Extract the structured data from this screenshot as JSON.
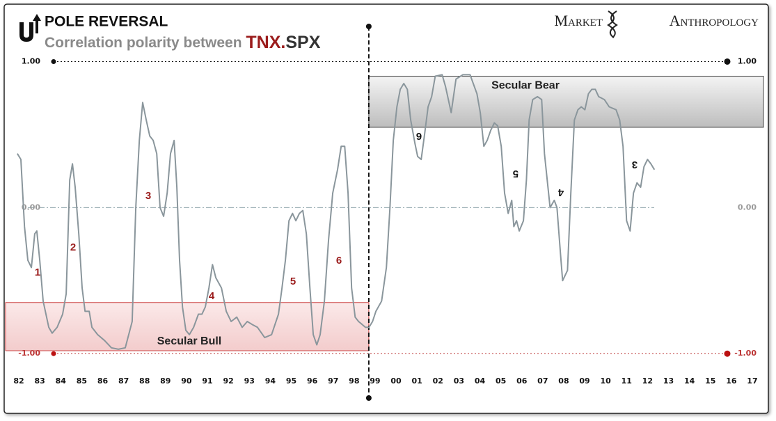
{
  "chart_data": {
    "type": "line",
    "title": "POLE REVERSAL",
    "subtitle": [
      "Correlation polarity between ",
      "TNX.",
      "SPX"
    ],
    "brand": [
      "Market",
      "Anthropology"
    ],
    "xlim": [
      1981.7,
      2017.3
    ],
    "ylim": [
      -1.08,
      1.05
    ],
    "xticks": [
      {
        "value": 1982,
        "label": "82"
      },
      {
        "value": 1983,
        "label": "83"
      },
      {
        "value": 1984,
        "label": "84"
      },
      {
        "value": 1985,
        "label": "85"
      },
      {
        "value": 1986,
        "label": "86"
      },
      {
        "value": 1987,
        "label": "87"
      },
      {
        "value": 1988,
        "label": "88"
      },
      {
        "value": 1989,
        "label": "89"
      },
      {
        "value": 1990,
        "label": "90"
      },
      {
        "value": 1991,
        "label": "91"
      },
      {
        "value": 1992,
        "label": "92"
      },
      {
        "value": 1993,
        "label": "93"
      },
      {
        "value": 1994,
        "label": "94"
      },
      {
        "value": 1995,
        "label": "95"
      },
      {
        "value": 1996,
        "label": "96"
      },
      {
        "value": 1997,
        "label": "97"
      },
      {
        "value": 1998,
        "label": "98"
      },
      {
        "value": 1999,
        "label": "99"
      },
      {
        "value": 2000,
        "label": "00"
      },
      {
        "value": 2001,
        "label": "01"
      },
      {
        "value": 2002,
        "label": "02"
      },
      {
        "value": 2003,
        "label": "03"
      },
      {
        "value": 2004,
        "label": "04"
      },
      {
        "value": 2005,
        "label": "05"
      },
      {
        "value": 2006,
        "label": "06"
      },
      {
        "value": 2007,
        "label": "07"
      },
      {
        "value": 2008,
        "label": "08"
      },
      {
        "value": 2009,
        "label": "09"
      },
      {
        "value": 2010,
        "label": "10"
      },
      {
        "value": 2011,
        "label": "11"
      },
      {
        "value": 2012,
        "label": "12"
      },
      {
        "value": 2013,
        "label": "13"
      },
      {
        "value": 2014,
        "label": "14"
      },
      {
        "value": 2015,
        "label": "15"
      },
      {
        "value": 2016,
        "label": "16"
      },
      {
        "value": 2017,
        "label": "17"
      }
    ],
    "yticks": [
      {
        "value": 1,
        "label": "1.00"
      },
      {
        "value": 0,
        "label": "0.00"
      },
      {
        "value": -1,
        "label": "-1.00"
      }
    ],
    "divider": 1998.7,
    "bands": [
      {
        "label": "Secular Bear",
        "range": [
          0.9,
          0.55
        ],
        "color": "#c8c8c8"
      },
      {
        "label": "Secular Bull",
        "range": [
          -0.65,
          -0.98
        ],
        "color": "#f6d6d6"
      }
    ],
    "annotations": [
      "1",
      "2",
      "3",
      "4",
      "5",
      "6",
      "6",
      "5",
      "4",
      "3"
    ],
    "series": [
      {
        "name": "Correlation",
        "color": "#8a969c",
        "x": [
          1981.93,
          1982.1,
          1982.27,
          1982.43,
          1982.6,
          1982.76,
          1982.86,
          1983.0,
          1983.16,
          1983.43,
          1983.59,
          1983.83,
          1984.09,
          1984.26,
          1984.43,
          1984.56,
          1984.69,
          1984.86,
          1985.02,
          1985.16,
          1985.36,
          1985.49,
          1985.76,
          1986.09,
          1986.42,
          1986.75,
          1987.08,
          1987.41,
          1987.58,
          1987.75,
          1987.91,
          1988.08,
          1988.25,
          1988.41,
          1988.58,
          1988.74,
          1988.91,
          1989.08,
          1989.24,
          1989.41,
          1989.54,
          1989.67,
          1989.81,
          1989.97,
          1990.14,
          1990.34,
          1990.57,
          1990.74,
          1990.9,
          1991.07,
          1991.24,
          1991.4,
          1991.67,
          1991.9,
          1992.13,
          1992.4,
          1992.66,
          1992.9,
          1993.13,
          1993.39,
          1993.73,
          1994.06,
          1994.39,
          1994.56,
          1994.72,
          1994.89,
          1995.06,
          1995.22,
          1995.39,
          1995.55,
          1995.72,
          1995.89,
          1996.05,
          1996.22,
          1996.38,
          1996.58,
          1996.78,
          1996.98,
          1997.21,
          1997.38,
          1997.55,
          1997.71,
          1997.88,
          1998.05,
          1998.21,
          1998.38,
          1998.54,
          1998.71,
          1998.88,
          1999.04,
          1999.31,
          1999.54,
          1999.71,
          1999.87,
          2000.04,
          2000.2,
          2000.37,
          2000.54,
          2000.7,
          2000.9,
          2001.03,
          2001.2,
          2001.37,
          2001.53,
          2001.7,
          2001.87,
          2002.2,
          2002.36,
          2002.63,
          2002.86,
          2003.19,
          2003.53,
          2003.86,
          2004.02,
          2004.19,
          2004.35,
          2004.52,
          2004.69,
          2004.85,
          2005.02,
          2005.18,
          2005.35,
          2005.52,
          2005.62,
          2005.75,
          2005.88,
          2006.08,
          2006.22,
          2006.35,
          2006.52,
          2006.75,
          2006.95,
          2007.08,
          2007.35,
          2007.55,
          2007.68,
          2007.85,
          2007.95,
          2008.18,
          2008.34,
          2008.51,
          2008.68,
          2008.84,
          2009.01,
          2009.18,
          2009.34,
          2009.51,
          2009.67,
          2009.94,
          2010.17,
          2010.5,
          2010.67,
          2010.83,
          2011.0,
          2011.17,
          2011.33,
          2011.5,
          2011.67,
          2011.83,
          2012.0,
          2012.16,
          2012.33
        ],
        "values": [
          0.37,
          0.33,
          -0.13,
          -0.36,
          -0.41,
          -0.18,
          -0.16,
          -0.36,
          -0.64,
          -0.82,
          -0.86,
          -0.82,
          -0.73,
          -0.59,
          0.19,
          0.3,
          0.14,
          -0.18,
          -0.55,
          -0.71,
          -0.71,
          -0.82,
          -0.87,
          -0.91,
          -0.96,
          -0.97,
          -0.96,
          -0.78,
          0.0,
          0.46,
          0.72,
          0.6,
          0.49,
          0.46,
          0.37,
          0.0,
          -0.06,
          0.1,
          0.37,
          0.46,
          0.14,
          -0.36,
          -0.68,
          -0.84,
          -0.87,
          -0.82,
          -0.73,
          -0.73,
          -0.68,
          -0.55,
          -0.39,
          -0.48,
          -0.55,
          -0.71,
          -0.78,
          -0.75,
          -0.82,
          -0.78,
          -0.8,
          -0.82,
          -0.89,
          -0.87,
          -0.73,
          -0.55,
          -0.36,
          -0.09,
          -0.04,
          -0.09,
          -0.04,
          -0.02,
          -0.18,
          -0.55,
          -0.87,
          -0.94,
          -0.87,
          -0.64,
          -0.22,
          0.1,
          0.26,
          0.42,
          0.42,
          0.1,
          -0.55,
          -0.75,
          -0.78,
          -0.8,
          -0.82,
          -0.82,
          -0.78,
          -0.71,
          -0.64,
          -0.41,
          0.0,
          0.46,
          0.69,
          0.81,
          0.85,
          0.81,
          0.6,
          0.44,
          0.35,
          0.33,
          0.51,
          0.69,
          0.76,
          0.9,
          0.91,
          0.83,
          0.65,
          0.88,
          0.91,
          0.91,
          0.78,
          0.65,
          0.42,
          0.46,
          0.53,
          0.58,
          0.56,
          0.42,
          0.1,
          -0.04,
          0.05,
          -0.13,
          -0.09,
          -0.16,
          -0.09,
          0.19,
          0.6,
          0.74,
          0.76,
          0.74,
          0.37,
          0.0,
          0.05,
          0.0,
          -0.32,
          -0.5,
          -0.43,
          0.1,
          0.6,
          0.67,
          0.69,
          0.67,
          0.78,
          0.81,
          0.81,
          0.76,
          0.74,
          0.69,
          0.67,
          0.6,
          0.42,
          -0.09,
          -0.16,
          0.1,
          0.17,
          0.14,
          0.28,
          0.33,
          0.3,
          0.26
        ]
      }
    ]
  }
}
